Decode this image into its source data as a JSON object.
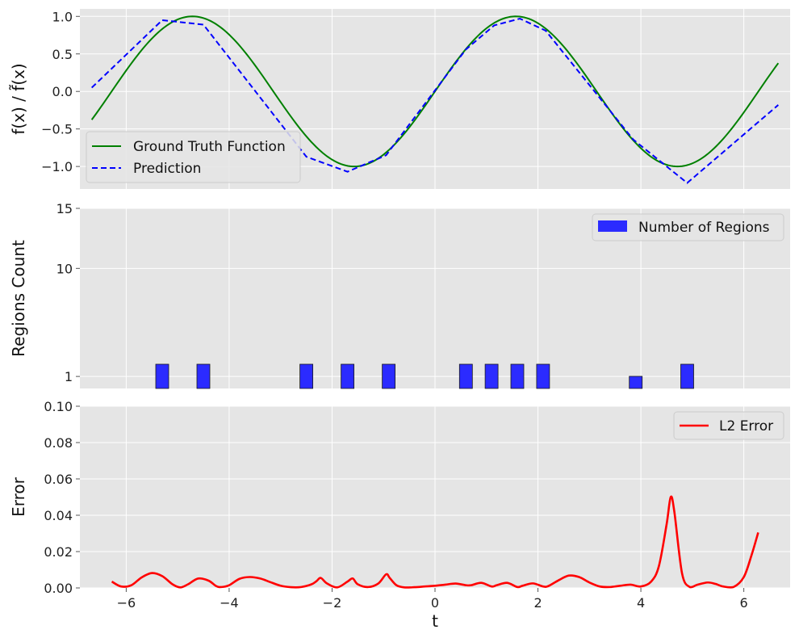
{
  "chart_data": [
    {
      "type": "line",
      "ylabel": "f(x) / f̃(x)",
      "xlim": [
        -6.9,
        6.9
      ],
      "ylim": [
        -1.3,
        1.1
      ],
      "yticks": [
        1.0,
        0.5,
        0.0,
        -0.5,
        -1.0
      ],
      "ytick_labels": [
        "1.0",
        "0.5",
        "0.0",
        "−0.5",
        "−1.0"
      ],
      "grid": true,
      "legend": "lower-left",
      "series": [
        {
          "name": "Ground Truth Function",
          "color": "#008000",
          "style": "solid",
          "function": "sin(x)",
          "x_range": [
            -6.67,
            6.67
          ]
        },
        {
          "name": "Prediction",
          "color": "#0000ff",
          "style": "dashed",
          "x": [
            -6.67,
            -5.3,
            -4.5,
            -2.5,
            -1.7,
            -0.95,
            0.6,
            1.15,
            1.65,
            2.15,
            3.85,
            4.9,
            6.67
          ],
          "y": [
            0.05,
            0.95,
            0.89,
            -0.87,
            -1.07,
            -0.85,
            0.56,
            0.88,
            0.97,
            0.81,
            -0.64,
            -1.22,
            -0.18
          ]
        }
      ]
    },
    {
      "type": "bar",
      "ylabel": "Regions Count",
      "xlim": [
        -6.9,
        6.9
      ],
      "ylim": [
        0,
        15
      ],
      "yticks": [
        1,
        10,
        15
      ],
      "ytick_labels": [
        "1",
        "10",
        "15"
      ],
      "grid": true,
      "legend": "top-right",
      "series": [
        {
          "name": "Number of Regions",
          "color": "#2b2bff",
          "x": [
            -5.3,
            -4.5,
            -2.5,
            -1.7,
            -0.9,
            0.6,
            1.1,
            1.6,
            2.1,
            3.9,
            4.9
          ],
          "values": [
            2,
            2,
            2,
            2,
            2,
            2,
            2,
            2,
            2,
            1,
            2
          ]
        }
      ]
    },
    {
      "type": "line",
      "xlabel": "t",
      "ylabel": "Error",
      "xlim": [
        -6.9,
        6.9
      ],
      "ylim": [
        0,
        0.1
      ],
      "xticks": [
        -6,
        -4,
        -2,
        0,
        2,
        4,
        6
      ],
      "xtick_labels": [
        "−6",
        "−4",
        "−2",
        "0",
        "2",
        "4",
        "6"
      ],
      "yticks": [
        0.0,
        0.02,
        0.04,
        0.06,
        0.08,
        0.1
      ],
      "ytick_labels": [
        "0.00",
        "0.02",
        "0.04",
        "0.06",
        "0.08",
        "0.10"
      ],
      "grid": true,
      "legend": "top-right",
      "series": [
        {
          "name": "L2 Error",
          "color": "#ff0000",
          "style": "solid",
          "x": [
            -6.28,
            -6.1,
            -5.9,
            -5.7,
            -5.5,
            -5.3,
            -5.1,
            -4.95,
            -4.8,
            -4.6,
            -4.4,
            -4.25,
            -4.15,
            -4.0,
            -3.8,
            -3.6,
            -3.4,
            -3.2,
            -3.0,
            -2.8,
            -2.6,
            -2.4,
            -2.3,
            -2.22,
            -2.1,
            -1.9,
            -1.7,
            -1.6,
            -1.5,
            -1.3,
            -1.1,
            -0.95,
            -0.88,
            -0.75,
            -0.6,
            -0.4,
            -0.2,
            0.0,
            0.2,
            0.4,
            0.6,
            0.7,
            0.9,
            1.1,
            1.2,
            1.4,
            1.6,
            1.7,
            1.9,
            2.1,
            2.2,
            2.4,
            2.6,
            2.8,
            3.0,
            3.2,
            3.4,
            3.6,
            3.8,
            4.0,
            4.2,
            4.35,
            4.5,
            4.58,
            4.65,
            4.8,
            4.95,
            5.1,
            5.3,
            5.45,
            5.6,
            5.8,
            6.0,
            6.15,
            6.28
          ],
          "y": [
            0.0035,
            0.0008,
            0.0015,
            0.0058,
            0.0082,
            0.0065,
            0.002,
            0.0003,
            0.002,
            0.0052,
            0.004,
            0.001,
            0.0005,
            0.0015,
            0.005,
            0.006,
            0.0052,
            0.0032,
            0.0012,
            0.0004,
            0.0005,
            0.002,
            0.0038,
            0.0055,
            0.0025,
            0.0003,
            0.0035,
            0.0052,
            0.002,
            0.0005,
            0.0025,
            0.0075,
            0.0055,
            0.0015,
            0.0003,
            0.0004,
            0.0008,
            0.0012,
            0.0018,
            0.0024,
            0.0015,
            0.0015,
            0.0028,
            0.0008,
            0.0015,
            0.0028,
            0.0005,
            0.0012,
            0.0025,
            0.0008,
            0.001,
            0.0042,
            0.0068,
            0.006,
            0.003,
            0.0008,
            0.0005,
            0.0012,
            0.0018,
            0.0008,
            0.0035,
            0.012,
            0.035,
            0.05,
            0.042,
            0.008,
            0.0005,
            0.0018,
            0.003,
            0.0022,
            0.0008,
            0.0005,
            0.006,
            0.018,
            0.0305
          ]
        }
      ]
    }
  ]
}
